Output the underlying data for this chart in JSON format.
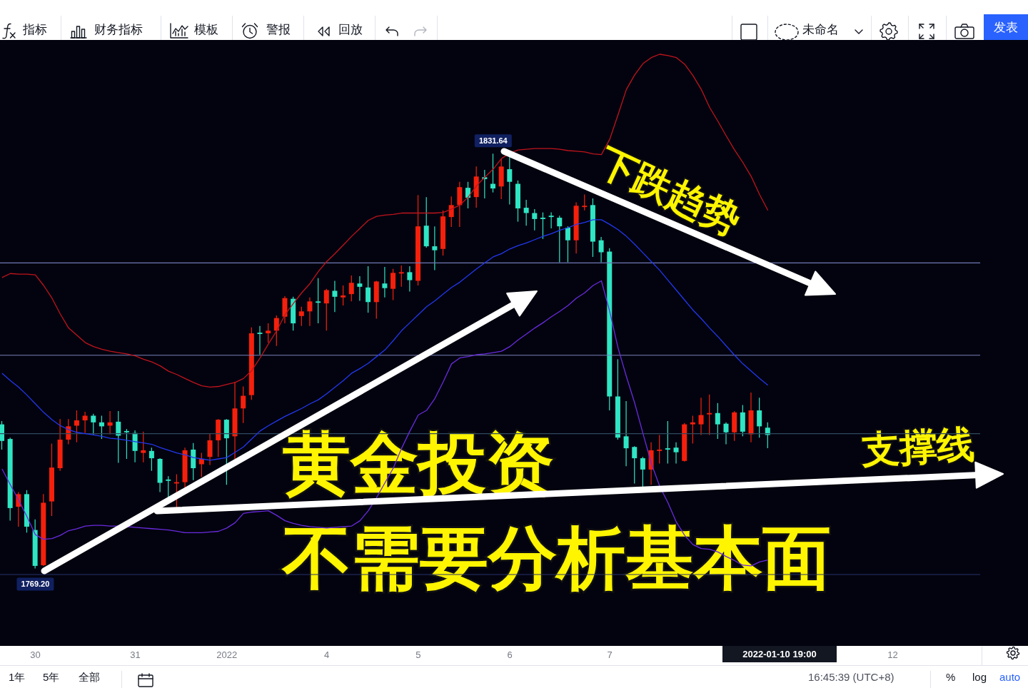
{
  "chart_data": {
    "type": "candlestick",
    "title": "黄金投资",
    "subtitle": "不需要分析基本面",
    "tick_labels": "x",
    "categories": [
      null,
      null,
      null,
      null,
      "30",
      null,
      null,
      null,
      null,
      null,
      null,
      null,
      null,
      null,
      null,
      null,
      "31",
      null,
      null,
      null,
      null,
      null,
      null,
      null,
      null,
      null,
      null,
      "2022",
      null,
      null,
      null,
      null,
      null,
      null,
      null,
      null,
      null,
      null,
      null,
      "4",
      null,
      null,
      null,
      null,
      null,
      null,
      null,
      null,
      null,
      null,
      "5",
      null,
      null,
      null,
      null,
      null,
      null,
      null,
      null,
      null,
      null,
      "6",
      null,
      null,
      null,
      null,
      null,
      null,
      null,
      null,
      null,
      null,
      null,
      "7",
      null,
      null,
      null,
      null,
      null,
      null,
      null,
      null,
      null,
      null,
      null,
      null,
      null,
      null,
      null,
      null,
      null,
      null,
      null,
      null,
      null,
      null,
      null,
      null,
      null,
      null,
      null,
      null,
      null,
      null,
      null,
      null,
      null,
      "12",
      null,
      null,
      null,
      null,
      null,
      null,
      null,
      null,
      null,
      null
    ],
    "ohlc": [
      [
        1790.9,
        1791.4,
        1787.1,
        1788.4
      ],
      [
        1788.7,
        1788.9,
        1776.4,
        1778.3
      ],
      [
        1778.5,
        1780.7,
        1775.5,
        1780.4
      ],
      [
        1780.4,
        1781.0,
        1774.6,
        1775.5
      ],
      [
        1775.0,
        1776.6,
        1769.2,
        1769.6
      ],
      [
        1769.7,
        1780.4,
        1769.6,
        1779.1
      ],
      [
        1779.3,
        1788.0,
        1777.1,
        1784.4
      ],
      [
        1784.3,
        1791.7,
        1783.9,
        1788.6
      ],
      [
        1788.6,
        1791.7,
        1787.9,
        1790.6
      ],
      [
        1790.7,
        1793.0,
        1788.2,
        1791.5
      ],
      [
        1791.5,
        1792.8,
        1789.6,
        1792.2
      ],
      [
        1792.2,
        1792.5,
        1789.3,
        1791.2
      ],
      [
        1791.2,
        1792.2,
        1788.7,
        1790.6
      ],
      [
        1790.7,
        1792.9,
        1789.4,
        1791.2
      ],
      [
        1791.3,
        1792.9,
        1785.1,
        1789.2
      ],
      [
        1789.9,
        1790.2,
        1785.7,
        1789.7
      ],
      [
        1789.6,
        1790.0,
        1785.2,
        1786.9
      ],
      [
        1786.6,
        1789.8,
        1785.2,
        1787.0
      ],
      [
        1786.9,
        1787.4,
        1783.9,
        1785.8
      ],
      [
        1785.7,
        1785.8,
        1780.7,
        1782.1
      ],
      [
        1782.6,
        1783.1,
        1779.9,
        1782.4
      ],
      [
        1782.0,
        1783.4,
        1778.3,
        1782.2
      ],
      [
        1782.2,
        1787.4,
        1781.4,
        1787.0
      ],
      [
        1787.1,
        1788.1,
        1782.5,
        1784.3
      ],
      [
        1784.9,
        1786.6,
        1783.0,
        1785.7
      ],
      [
        1786.0,
        1789.5,
        1784.8,
        1788.5
      ],
      [
        1788.5,
        1791.7,
        1786.0,
        1791.6
      ],
      [
        1791.6,
        1791.7,
        1781.8,
        1788.8
      ],
      [
        1789.1,
        1797.3,
        1785.7,
        1793.3
      ],
      [
        1793.3,
        1796.6,
        1791.1,
        1795.2
      ],
      [
        1795.3,
        1805.5,
        1794.6,
        1804.6
      ],
      [
        1804.7,
        1805.7,
        1801.4,
        1804.5
      ],
      [
        1804.6,
        1806.1,
        1803.2,
        1805.0
      ],
      [
        1805.0,
        1807.3,
        1802.7,
        1806.9
      ],
      [
        1807.1,
        1810.2,
        1806.1,
        1809.9
      ],
      [
        1809.8,
        1810.1,
        1805.0,
        1806.1
      ],
      [
        1807.2,
        1808.6,
        1805.7,
        1807.9
      ],
      [
        1807.9,
        1810.0,
        1805.7,
        1809.4
      ],
      [
        1809.4,
        1812.9,
        1806.1,
        1809.2
      ],
      [
        1809.1,
        1811.3,
        1805.0,
        1811.1
      ],
      [
        1811.0,
        1812.5,
        1807.8,
        1810.1
      ],
      [
        1810.0,
        1811.8,
        1808.8,
        1810.3
      ],
      [
        1810.5,
        1813.3,
        1809.4,
        1812.2
      ],
      [
        1812.1,
        1813.2,
        1809.5,
        1811.6
      ],
      [
        1811.5,
        1814.7,
        1807.7,
        1809.3
      ],
      [
        1809.3,
        1812.5,
        1806.8,
        1812.4
      ],
      [
        1812.1,
        1814.6,
        1810.0,
        1811.4
      ],
      [
        1811.3,
        1814.3,
        1809.6,
        1813.7
      ],
      [
        1813.6,
        1814.8,
        1811.6,
        1813.8
      ],
      [
        1813.8,
        1814.7,
        1810.9,
        1812.6
      ],
      [
        1812.5,
        1825.4,
        1811.8,
        1820.7
      ],
      [
        1820.8,
        1825.1,
        1817.5,
        1817.7
      ],
      [
        1817.7,
        1820.7,
        1814.1,
        1817.1
      ],
      [
        1817.3,
        1823.1,
        1816.3,
        1822.2
      ],
      [
        1822.1,
        1825.2,
        1820.6,
        1823.9
      ],
      [
        1823.9,
        1827.4,
        1820.6,
        1826.6
      ],
      [
        1826.5,
        1827.4,
        1823.4,
        1825.0
      ],
      [
        1825.1,
        1829.7,
        1823.5,
        1828.2
      ],
      [
        1828.1,
        1829.2,
        1824.9,
        1827.8
      ],
      [
        1827.1,
        1831.64,
        1825.8,
        1826.4
      ],
      [
        1826.7,
        1830.8,
        1824.8,
        1829.7
      ],
      [
        1829.3,
        1831.1,
        1824.0,
        1827.4
      ],
      [
        1827.1,
        1827.6,
        1821.4,
        1823.4
      ],
      [
        1823.5,
        1824.7,
        1820.8,
        1822.7
      ],
      [
        1822.7,
        1823.3,
        1820.1,
        1821.8
      ],
      [
        1822.0,
        1822.8,
        1818.8,
        1821.8
      ],
      [
        1822.3,
        1822.8,
        1820.4,
        1822.1
      ],
      [
        1822.0,
        1822.3,
        1815.3,
        1820.7
      ],
      [
        1820.5,
        1820.7,
        1815.3,
        1818.6
      ],
      [
        1818.6,
        1824.3,
        1816.6,
        1823.8
      ],
      [
        1823.6,
        1825.5,
        1823.1,
        1823.8
      ],
      [
        1823.9,
        1824.9,
        1816.1,
        1818.4
      ],
      [
        1818.6,
        1819.1,
        1815.3,
        1816.8
      ],
      [
        1816.9,
        1817.4,
        1793.0,
        1795.1
      ],
      [
        1795.1,
        1800.7,
        1788.6,
        1788.9
      ],
      [
        1789.1,
        1794.4,
        1784.6,
        1787.3
      ],
      [
        1787.5,
        1787.6,
        1782.0,
        1785.8
      ],
      [
        1785.8,
        1786.0,
        1781.5,
        1784.1
      ],
      [
        1784.1,
        1788.2,
        1781.8,
        1787.0
      ],
      [
        1786.9,
        1789.3,
        1785.0,
        1787.1
      ],
      [
        1787.3,
        1791.4,
        1785.0,
        1787.1
      ],
      [
        1787.4,
        1788.2,
        1785.0,
        1786.7
      ],
      [
        1785.4,
        1791.1,
        1785.3,
        1790.9
      ],
      [
        1790.9,
        1792.2,
        1788.0,
        1791.2
      ],
      [
        1790.9,
        1794.9,
        1789.3,
        1792.3
      ],
      [
        1792.4,
        1795.4,
        1789.3,
        1792.6
      ],
      [
        1792.6,
        1794.1,
        1788.7,
        1790.9
      ],
      [
        1791.0,
        1791.2,
        1787.9,
        1789.7
      ],
      [
        1789.7,
        1792.9,
        1788.4,
        1792.7
      ],
      [
        1792.7,
        1793.8,
        1789.1,
        1789.8
      ],
      [
        1789.4,
        1795.7,
        1788.2,
        1793.0
      ],
      [
        1793.0,
        1794.9,
        1788.9,
        1790.6
      ],
      [
        1790.4,
        1791.2,
        1787.3,
        1789.3
      ],
      null,
      null,
      null,
      null,
      null,
      null,
      null,
      null,
      null,
      null,
      null,
      null,
      null,
      null,
      null,
      null,
      null,
      null,
      null,
      null,
      null,
      null,
      null,
      null,
      null
    ],
    "colors": [
      "#2fe5c3",
      "#2fe5c3",
      "#f5200c",
      "#2fe5c3",
      "#2fe5c3",
      "#f5200c",
      "#f5200c",
      "#f5200c",
      "#f5200c",
      "#f5200c",
      "#f5200c",
      "#2fe5c3",
      "#2fe5c3",
      "#f5200c",
      "#2fe5c3",
      "#2fe5c3",
      "#2fe5c3",
      "#f5200c",
      "#2fe5c3",
      "#2fe5c3",
      "#2fe5c3",
      "#f5200c",
      "#f5200c",
      "#2fe5c3",
      "#f5200c",
      "#f5200c",
      "#f5200c",
      "#2fe5c3",
      "#f5200c",
      "#f5200c",
      "#f5200c",
      "#2fe5c3",
      "#f5200c",
      "#f5200c",
      "#f5200c",
      "#2fe5c3",
      "#f5200c",
      "#f5200c",
      "#2fe5c3",
      "#f5200c",
      "#2fe5c3",
      "#f5200c",
      "#f5200c",
      "#2fe5c3",
      "#2fe5c3",
      "#f5200c",
      "#2fe5c3",
      "#f5200c",
      "#f5200c",
      "#2fe5c3",
      "#f5200c",
      "#2fe5c3",
      "#2fe5c3",
      "#f5200c",
      "#f5200c",
      "#f5200c",
      "#2fe5c3",
      "#f5200c",
      "#2fe5c3",
      "#2fe5c3",
      "#f5200c",
      "#2fe5c3",
      "#2fe5c3",
      "#2fe5c3",
      "#2fe5c3",
      "#2fe5c3",
      "#2fe5c3",
      "#2fe5c3",
      "#2fe5c3",
      "#f5200c",
      "#f5200c",
      "#2fe5c3",
      "#2fe5c3",
      "#2fe5c3",
      "#2fe5c3",
      "#2fe5c3",
      "#2fe5c3",
      "#2fe5c3",
      "#f5200c",
      "#f5200c",
      "#2fe5c3",
      "#2fe5c3",
      "#f5200c",
      "#f5200c",
      "#f5200c",
      "#f5200c",
      "#2fe5c3",
      "#2fe5c3",
      "#f5200c",
      "#2fe5c3",
      "#f5200c",
      "#2fe5c3",
      "#2fe5c3",
      null,
      null,
      null,
      null,
      null,
      null,
      null,
      null,
      null,
      null,
      null,
      null,
      null,
      null,
      null,
      null,
      null,
      null,
      null,
      null,
      null,
      null,
      null,
      null,
      null
    ],
    "series": [
      {
        "type": "line",
        "color": "#c0141c",
        "values": [
          1813.0,
          1813.6,
          1813.5,
          1813.5,
          1813.4,
          1811.8,
          1809.9,
          1807.5,
          1805.4,
          1804.3,
          1803.2,
          1802.6,
          1802.2,
          1801.9,
          1801.7,
          1801.5,
          1801.2,
          1800.7,
          1800.3,
          1799.7,
          1798.9,
          1798.4,
          1797.8,
          1797.2,
          1796.7,
          1796.5,
          1796.6,
          1796.9,
          1797.2,
          1797.8,
          1799.0,
          1800.9,
          1803.0,
          1805.0,
          1807.4,
          1809.1,
          1810.7,
          1812.1,
          1813.9,
          1815.4,
          1816.6,
          1817.9,
          1819.2,
          1820.4,
          1821.6,
          1822.2,
          1822.4,
          1822.5,
          1822.7,
          1822.7,
          1822.7,
          1822.7,
          1822.7,
          1822.8,
          1823.3,
          1823.9,
          1825.1,
          1826.8,
          1828.1,
          1829.3,
          1830.9,
          1831.7,
          1832.2,
          1832.3,
          1832.4,
          1832.4,
          1832.4,
          1832.3,
          1832.1,
          1832.0,
          1831.9,
          1831.6,
          1831.5,
          1833.8,
          1837.5,
          1841.3,
          1843.5,
          1845.2,
          1846.1,
          1846.6,
          1846.4,
          1846.1,
          1845.1,
          1843.4,
          1841.3,
          1838.6,
          1836.5,
          1834.3,
          1832.2,
          1830.3,
          1828.2,
          1825.5,
          1823.1,
          null,
          null,
          null,
          null,
          null,
          null,
          null,
          null,
          null,
          null,
          null,
          null,
          null,
          null,
          null,
          null,
          null,
          null,
          null,
          null,
          null,
          null,
          null,
          null,
          null
        ]
      },
      {
        "type": "line",
        "color": "#2238f0",
        "values": [
          1798.6,
          1797.5,
          1796.5,
          1795.3,
          1794.0,
          1792.7,
          1791.6,
          1790.7,
          1790.1,
          1789.7,
          1789.5,
          1789.3,
          1789.1,
          1788.8,
          1788.7,
          1788.5,
          1788.3,
          1788.1,
          1787.9,
          1787.4,
          1787.0,
          1786.6,
          1786.3,
          1785.9,
          1785.7,
          1785.5,
          1785.7,
          1785.9,
          1786.7,
          1787.5,
          1788.7,
          1789.9,
          1790.7,
          1791.4,
          1792.1,
          1792.7,
          1793.3,
          1794.0,
          1794.6,
          1795.5,
          1796.5,
          1797.5,
          1798.6,
          1799.3,
          1800.1,
          1801.1,
          1802.1,
          1803.5,
          1805.0,
          1806.2,
          1807.4,
          1808.6,
          1809.5,
          1810.5,
          1811.5,
          1812.3,
          1813.3,
          1814.3,
          1815.2,
          1816.1,
          1816.6,
          1817.3,
          1817.8,
          1818.2,
          1818.7,
          1819.2,
          1819.6,
          1820.1,
          1820.5,
          1821.0,
          1821.3,
          1821.7,
          1821.7,
          1821.0,
          1820.2,
          1819.2,
          1818.0,
          1816.7,
          1815.4,
          1814.1,
          1812.6,
          1811.1,
          1809.6,
          1808.1,
          1806.8,
          1805.4,
          1804.1,
          1802.7,
          1801.3,
          1800.0,
          1798.9,
          1797.8,
          1796.8,
          null,
          null,
          null,
          null,
          null,
          null,
          null,
          null,
          null,
          null,
          null,
          null,
          null,
          null,
          null,
          null,
          null,
          null,
          null,
          null,
          null,
          null,
          null,
          null,
          null
        ]
      },
      {
        "type": "line",
        "color": "#6a2be0",
        "values": [
          1784.2,
          1781.8,
          1779.5,
          1777.0,
          1774.3,
          1773.6,
          1773.7,
          1774.2,
          1774.9,
          1775.2,
          1775.6,
          1775.7,
          1775.7,
          1775.6,
          1775.6,
          1775.5,
          1775.4,
          1775.3,
          1775.2,
          1775.1,
          1775.0,
          1774.8,
          1774.6,
          1774.6,
          1774.6,
          1774.7,
          1774.8,
          1775.3,
          1776.1,
          1777.5,
          1777.7,
          1777.8,
          1777.9,
          1777.2,
          1776.4,
          1776.0,
          1775.7,
          1775.5,
          1775.4,
          1775.3,
          1775.4,
          1775.5,
          1775.6,
          1776.4,
          1777.9,
          1779.9,
          1782.1,
          1784.3,
          1787.3,
          1789.9,
          1792.3,
          1793.0,
          1794.8,
          1797.3,
          1800.0,
          1800.9,
          1801.1,
          1801.4,
          1801.5,
          1801.7,
          1801.9,
          1802.6,
          1803.6,
          1804.5,
          1805.4,
          1806.2,
          1807.1,
          1807.9,
          1808.8,
          1809.9,
          1810.7,
          1811.8,
          1812.5,
          1807.9,
          1802.4,
          1798.1,
          1794.1,
          1789.5,
          1785.0,
          1781.6,
          1779.1,
          1776.2,
          1774.2,
          1772.8,
          1772.2,
          1772.1,
          1771.7,
          1771.0,
          1770.4,
          1769.7,
          1769.6,
          1770.2,
          1770.5,
          null,
          null,
          null,
          null,
          null,
          null,
          null,
          null,
          null,
          null,
          null,
          null,
          null,
          null,
          null,
          null,
          null,
          null,
          null,
          null,
          null,
          null,
          null,
          null,
          null
        ]
      }
    ],
    "ref_lines": [
      {
        "axis": "y",
        "value": 1815.2,
        "color": "#6f78b4"
      },
      {
        "axis": "y",
        "value": 1801.3,
        "color": "#7a82bc"
      },
      {
        "axis": "y",
        "value": 1789.5,
        "color": "#2d4a5e"
      },
      {
        "axis": "y",
        "value": 1768.3,
        "color": "#26336b"
      }
    ],
    "annotations": [
      "下跌趋势",
      "支撑线",
      {
        "text": "1831.64",
        "y": 1831.64
      },
      {
        "text": "1769.20",
        "y": 1769.2
      },
      "2022-01-10 19:00",
      "指标",
      "财务指标",
      "模板",
      "警报",
      "回放",
      "未命名",
      "发表",
      "1年",
      "5年",
      "全部",
      "16:45:39 (UTC+8)",
      "%",
      "log",
      "auto"
    ]
  }
}
